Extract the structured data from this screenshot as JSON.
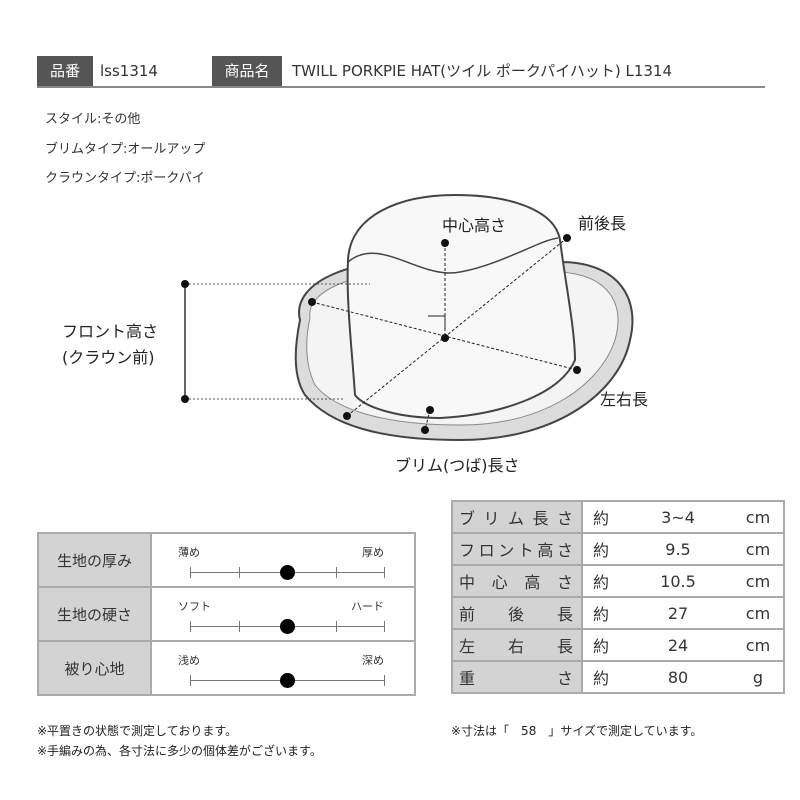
{
  "header": {
    "code_label": "品番",
    "code": "lss1314",
    "name_label": "商品名",
    "name": "TWILL PORKPIE HAT(ツイル ポークパイハット) L1314"
  },
  "attributes": [
    "スタイル:その他",
    "ブリムタイプ:オールアップ",
    "クラウンタイプ:ポークパイ"
  ],
  "diagram": {
    "center_height": "中心高さ",
    "front_back": "前後長",
    "front_height_1": "フロント高さ",
    "front_height_2": "(クラウン前)",
    "left_right": "左右長",
    "brim_length": "ブリム(つば)長さ"
  },
  "feel": [
    {
      "label": "生地の厚み",
      "low": "薄め",
      "high": "厚め",
      "value": 0.5,
      "ticks": true
    },
    {
      "label": "生地の硬さ",
      "low": "ソフト",
      "high": "ハード",
      "value": 0.5,
      "ticks": true
    },
    {
      "label": "被り心地",
      "low": "浅め",
      "high": "深め",
      "value": 0.5,
      "ticks": false
    }
  ],
  "measurements": [
    {
      "label": "ブリム長さ",
      "approx": "約",
      "value": "3~4",
      "unit": "cm"
    },
    {
      "label": "フロント高さ",
      "approx": "約",
      "value": "9.5",
      "unit": "cm"
    },
    {
      "label": "中心高さ",
      "approx": "約",
      "value": "10.5",
      "unit": "cm"
    },
    {
      "label": "前後長",
      "approx": "約",
      "value": "27",
      "unit": "cm"
    },
    {
      "label": "左右長",
      "approx": "約",
      "value": "24",
      "unit": "cm"
    },
    {
      "label": "重さ",
      "approx": "約",
      "value": "80",
      "unit": "g"
    }
  ],
  "notes_left": [
    "※平置きの状態で測定しております。",
    "※手編みの為、各寸法に多少の個体差がございます。"
  ],
  "note_right": "※寸法は「　58　」サイズで測定しています。"
}
